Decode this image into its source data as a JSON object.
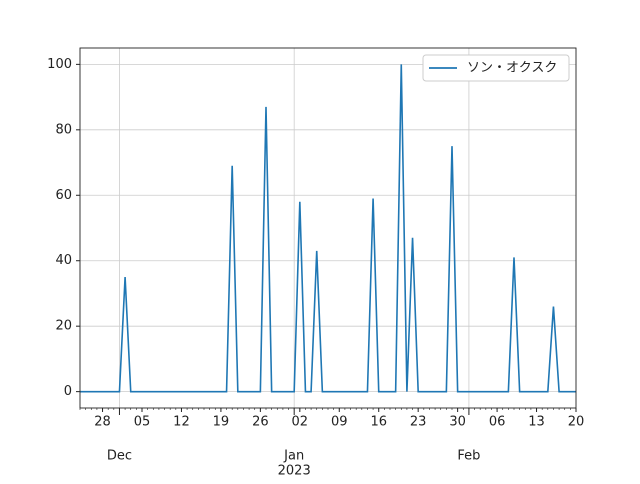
{
  "chart_data": {
    "type": "line",
    "x": [
      "2022-11-24",
      "2022-11-25",
      "2022-11-26",
      "2022-11-27",
      "2022-11-28",
      "2022-11-29",
      "2022-11-30",
      "2022-12-01",
      "2022-12-02",
      "2022-12-03",
      "2022-12-04",
      "2022-12-05",
      "2022-12-06",
      "2022-12-07",
      "2022-12-08",
      "2022-12-09",
      "2022-12-10",
      "2022-12-11",
      "2022-12-12",
      "2022-12-13",
      "2022-12-14",
      "2022-12-15",
      "2022-12-16",
      "2022-12-17",
      "2022-12-18",
      "2022-12-19",
      "2022-12-20",
      "2022-12-21",
      "2022-12-22",
      "2022-12-23",
      "2022-12-24",
      "2022-12-25",
      "2022-12-26",
      "2022-12-27",
      "2022-12-28",
      "2022-12-29",
      "2022-12-30",
      "2022-12-31",
      "2023-01-01",
      "2023-01-02",
      "2023-01-03",
      "2023-01-04",
      "2023-01-05",
      "2023-01-06",
      "2023-01-07",
      "2023-01-08",
      "2023-01-09",
      "2023-01-10",
      "2023-01-11",
      "2023-01-12",
      "2023-01-13",
      "2023-01-14",
      "2023-01-15",
      "2023-01-16",
      "2023-01-17",
      "2023-01-18",
      "2023-01-19",
      "2023-01-20",
      "2023-01-21",
      "2023-01-22",
      "2023-01-23",
      "2023-01-24",
      "2023-01-25",
      "2023-01-26",
      "2023-01-27",
      "2023-01-28",
      "2023-01-29",
      "2023-01-30",
      "2023-01-31",
      "2023-02-01",
      "2023-02-02",
      "2023-02-03",
      "2023-02-04",
      "2023-02-05",
      "2023-02-06",
      "2023-02-07",
      "2023-02-08",
      "2023-02-09",
      "2023-02-10",
      "2023-02-11",
      "2023-02-12",
      "2023-02-13",
      "2023-02-14",
      "2023-02-15",
      "2023-02-16",
      "2023-02-17",
      "2023-02-18",
      "2023-02-19",
      "2023-02-20"
    ],
    "series": [
      {
        "name": "ソン・オクスク",
        "color": "#1f77b4",
        "values": [
          0,
          0,
          0,
          0,
          0,
          0,
          0,
          0,
          35,
          0,
          0,
          0,
          0,
          0,
          0,
          0,
          0,
          0,
          0,
          0,
          0,
          0,
          0,
          0,
          0,
          0,
          0,
          69,
          0,
          0,
          0,
          0,
          0,
          87,
          0,
          0,
          0,
          0,
          0,
          58,
          0,
          0,
          43,
          0,
          0,
          0,
          0,
          0,
          0,
          0,
          0,
          0,
          59,
          0,
          0,
          0,
          0,
          100,
          0,
          47,
          0,
          0,
          0,
          0,
          0,
          0,
          75,
          0,
          0,
          0,
          0,
          0,
          0,
          0,
          0,
          0,
          0,
          41,
          0,
          0,
          0,
          0,
          0,
          0,
          26,
          0,
          0,
          0,
          0
        ]
      }
    ],
    "xlim": [
      "2022-11-24",
      "2023-02-20"
    ],
    "xticks": [
      {
        "value": "2022-11-28",
        "label": "28"
      },
      {
        "value": "2022-12-05",
        "label": "05"
      },
      {
        "value": "2022-12-12",
        "label": "12"
      },
      {
        "value": "2022-12-19",
        "label": "19"
      },
      {
        "value": "2022-12-26",
        "label": "26"
      },
      {
        "value": "2023-01-02",
        "label": "02"
      },
      {
        "value": "2023-01-09",
        "label": "09"
      },
      {
        "value": "2023-01-16",
        "label": "16"
      },
      {
        "value": "2023-01-23",
        "label": "23"
      },
      {
        "value": "2023-01-30",
        "label": "30"
      },
      {
        "value": "2023-02-06",
        "label": "06"
      },
      {
        "value": "2023-02-13",
        "label": "13"
      },
      {
        "value": "2023-02-20",
        "label": "20"
      }
    ],
    "xticks_major": [
      {
        "value": "2022-12-01",
        "label": "Dec"
      },
      {
        "value": "2023-01-01",
        "label": "Jan",
        "sublabel": "2023"
      },
      {
        "value": "2023-02-01",
        "label": "Feb"
      }
    ],
    "ylim": [
      -5,
      105
    ],
    "yticks": [
      0,
      20,
      40,
      60,
      80,
      100
    ],
    "grid": true,
    "legend": "upper right"
  }
}
